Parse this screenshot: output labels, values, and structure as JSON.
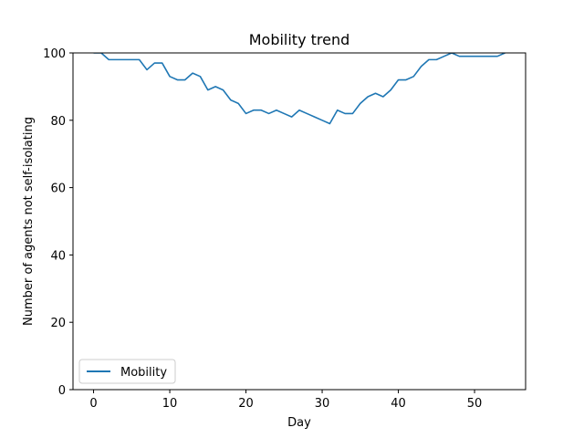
{
  "chart_data": {
    "type": "line",
    "title": "Mobility trend",
    "xlabel": "Day",
    "ylabel": "Number of agents not self-isolating",
    "xlim": [
      -2.7,
      56.7
    ],
    "ylim": [
      0,
      100
    ],
    "xticks": [
      0,
      10,
      20,
      30,
      40,
      50
    ],
    "yticks": [
      0,
      20,
      40,
      60,
      80,
      100
    ],
    "legend_position": "lower-left",
    "series": [
      {
        "name": "Mobility",
        "color": "#1f77b4",
        "x": [
          0,
          1,
          2,
          3,
          4,
          5,
          6,
          7,
          8,
          9,
          10,
          11,
          12,
          13,
          14,
          15,
          16,
          17,
          18,
          19,
          20,
          21,
          22,
          23,
          24,
          25,
          26,
          27,
          28,
          29,
          30,
          31,
          32,
          33,
          34,
          35,
          36,
          37,
          38,
          39,
          40,
          41,
          42,
          43,
          44,
          45,
          46,
          47,
          48,
          49,
          50,
          51,
          52,
          53,
          54
        ],
        "values": [
          100,
          100,
          98,
          98,
          98,
          98,
          98,
          95,
          97,
          97,
          93,
          92,
          92,
          94,
          93,
          89,
          90,
          89,
          86,
          85,
          82,
          83,
          83,
          82,
          83,
          82,
          81,
          83,
          82,
          81,
          80,
          79,
          83,
          82,
          82,
          85,
          87,
          88,
          87,
          89,
          92,
          92,
          93,
          96,
          98,
          98,
          99,
          100,
          99,
          99,
          99,
          99,
          99,
          99,
          100
        ]
      }
    ]
  }
}
